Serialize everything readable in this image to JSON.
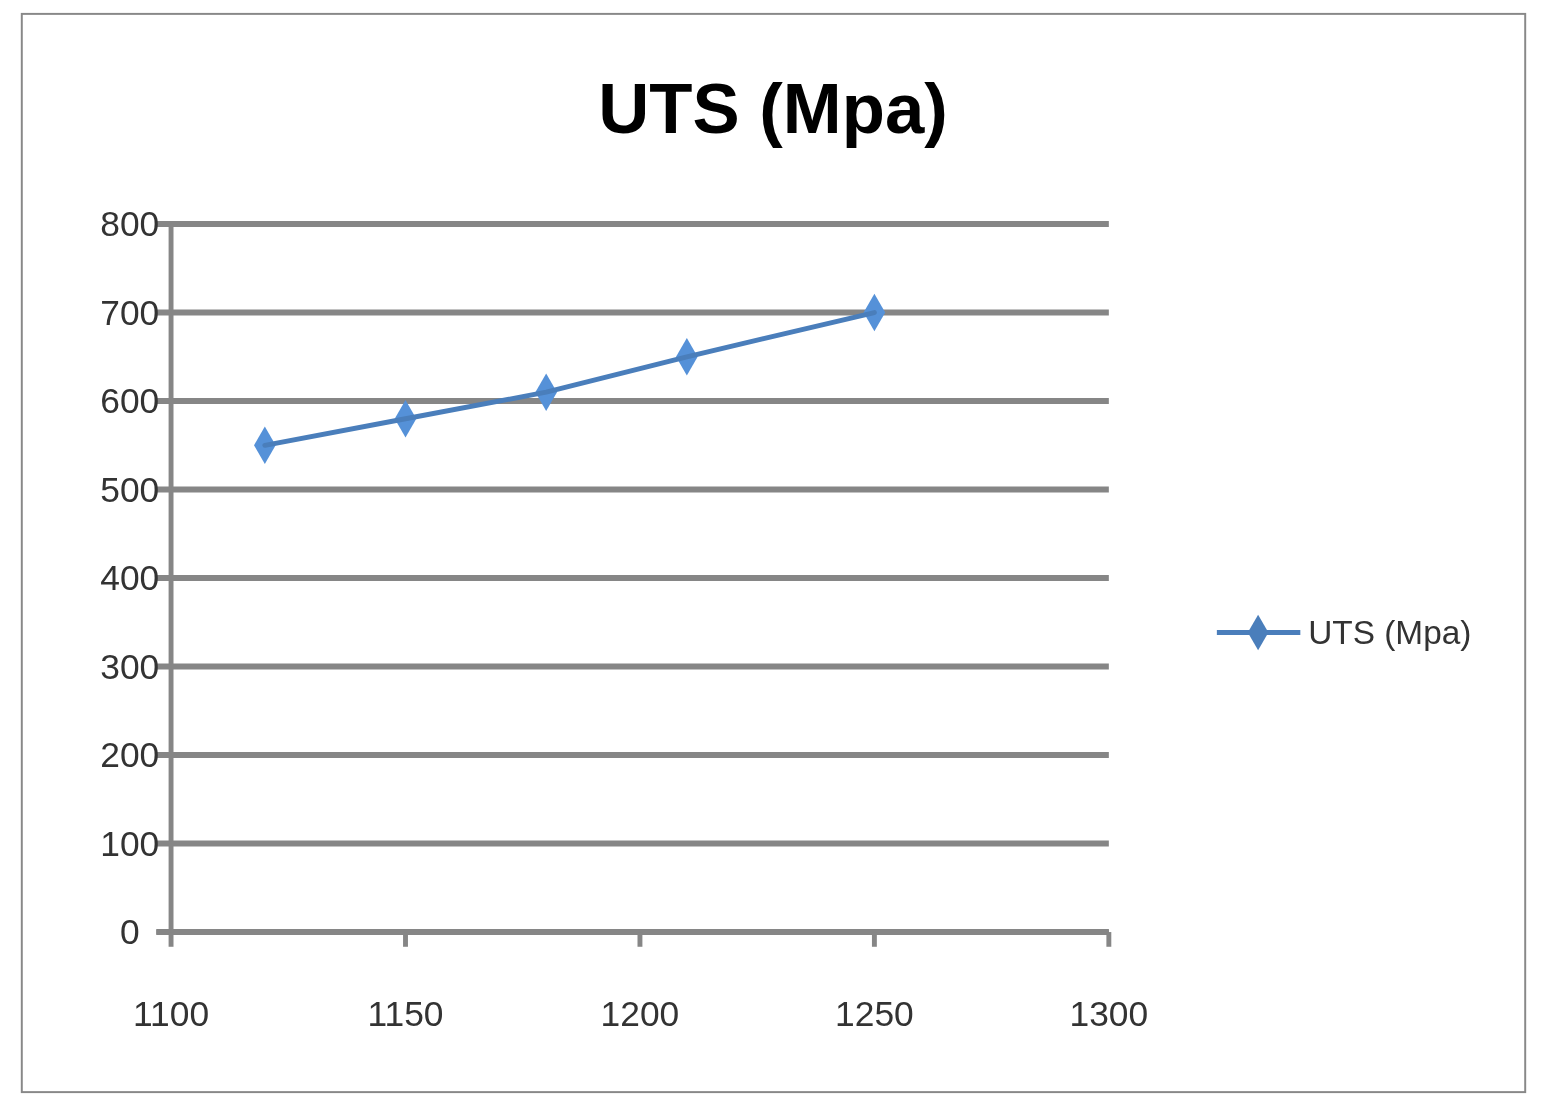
{
  "chart_data": {
    "type": "line",
    "title": "UTS (Mpa)",
    "x": [
      1120,
      1150,
      1180,
      1210,
      1250
    ],
    "series": [
      {
        "name": "UTS (Mpa)",
        "color": "#4a7ebb",
        "values": [
          550,
          580,
          610,
          650,
          700
        ]
      }
    ],
    "xlim": [
      1100,
      1300
    ],
    "xticks": [
      1100,
      1150,
      1200,
      1250,
      1300
    ],
    "ylim": [
      0,
      800
    ],
    "yticks": [
      0,
      100,
      200,
      300,
      400,
      500,
      600,
      700,
      800
    ],
    "grid": "y",
    "legend": "right",
    "marker": "diamond",
    "line_style": "solid"
  }
}
